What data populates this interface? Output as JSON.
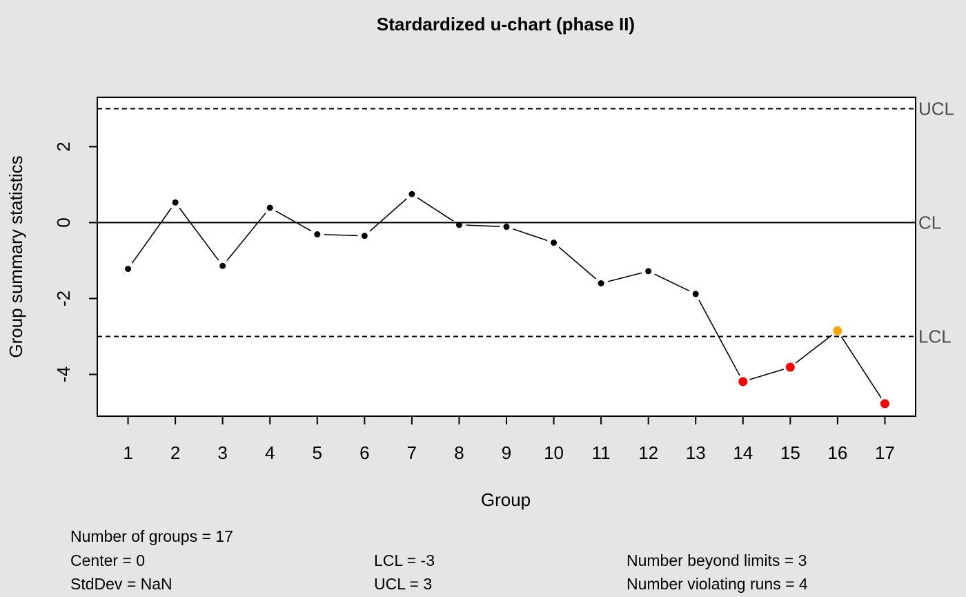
{
  "chart_data": {
    "type": "line",
    "title": "Stardardized u-chart (phase II)",
    "xlabel": "Group",
    "ylabel": "Group summary statistics",
    "x": [
      1,
      2,
      3,
      4,
      5,
      6,
      7,
      8,
      9,
      10,
      11,
      12,
      13,
      14,
      15,
      16,
      17
    ],
    "values": [
      -1.22,
      0.53,
      -1.14,
      0.39,
      -0.31,
      -0.35,
      0.75,
      -0.06,
      -0.11,
      -0.53,
      -1.6,
      -1.28,
      -1.88,
      -4.19,
      -3.81,
      -2.85,
      -4.77
    ],
    "point_status": [
      "normal",
      "normal",
      "normal",
      "normal",
      "normal",
      "normal",
      "normal",
      "normal",
      "normal",
      "normal",
      "normal",
      "normal",
      "normal",
      "beyond_limits",
      "beyond_limits",
      "violating_runs",
      "beyond_limits"
    ],
    "ylim": [
      -5.1,
      3.3
    ],
    "yticks": [
      -4,
      -2,
      0,
      2
    ],
    "xticks": [
      1,
      2,
      3,
      4,
      5,
      6,
      7,
      8,
      9,
      10,
      11,
      12,
      13,
      14,
      15,
      16,
      17
    ],
    "limits": {
      "ucl": {
        "value": 3,
        "label": "UCL"
      },
      "cl": {
        "value": 0,
        "label": "CL"
      },
      "lcl": {
        "value": -3,
        "label": "LCL"
      }
    },
    "grid": false,
    "colors": {
      "background": "#e5e5e5",
      "plot_background": "#ffffff",
      "normal_point": "#000000",
      "beyond_limits_point": "#ff0000",
      "violating_runs_point": "#ffa500",
      "limit_label": "#4d4d4d"
    }
  },
  "stats": {
    "groups": "Number of groups = 17",
    "center": "Center = 0",
    "stddev": "StdDev = NaN",
    "lcl": "LCL = -3",
    "ucl": "UCL = 3",
    "beyond": "Number beyond limits = 3",
    "violating": "Number violating runs = 4"
  }
}
